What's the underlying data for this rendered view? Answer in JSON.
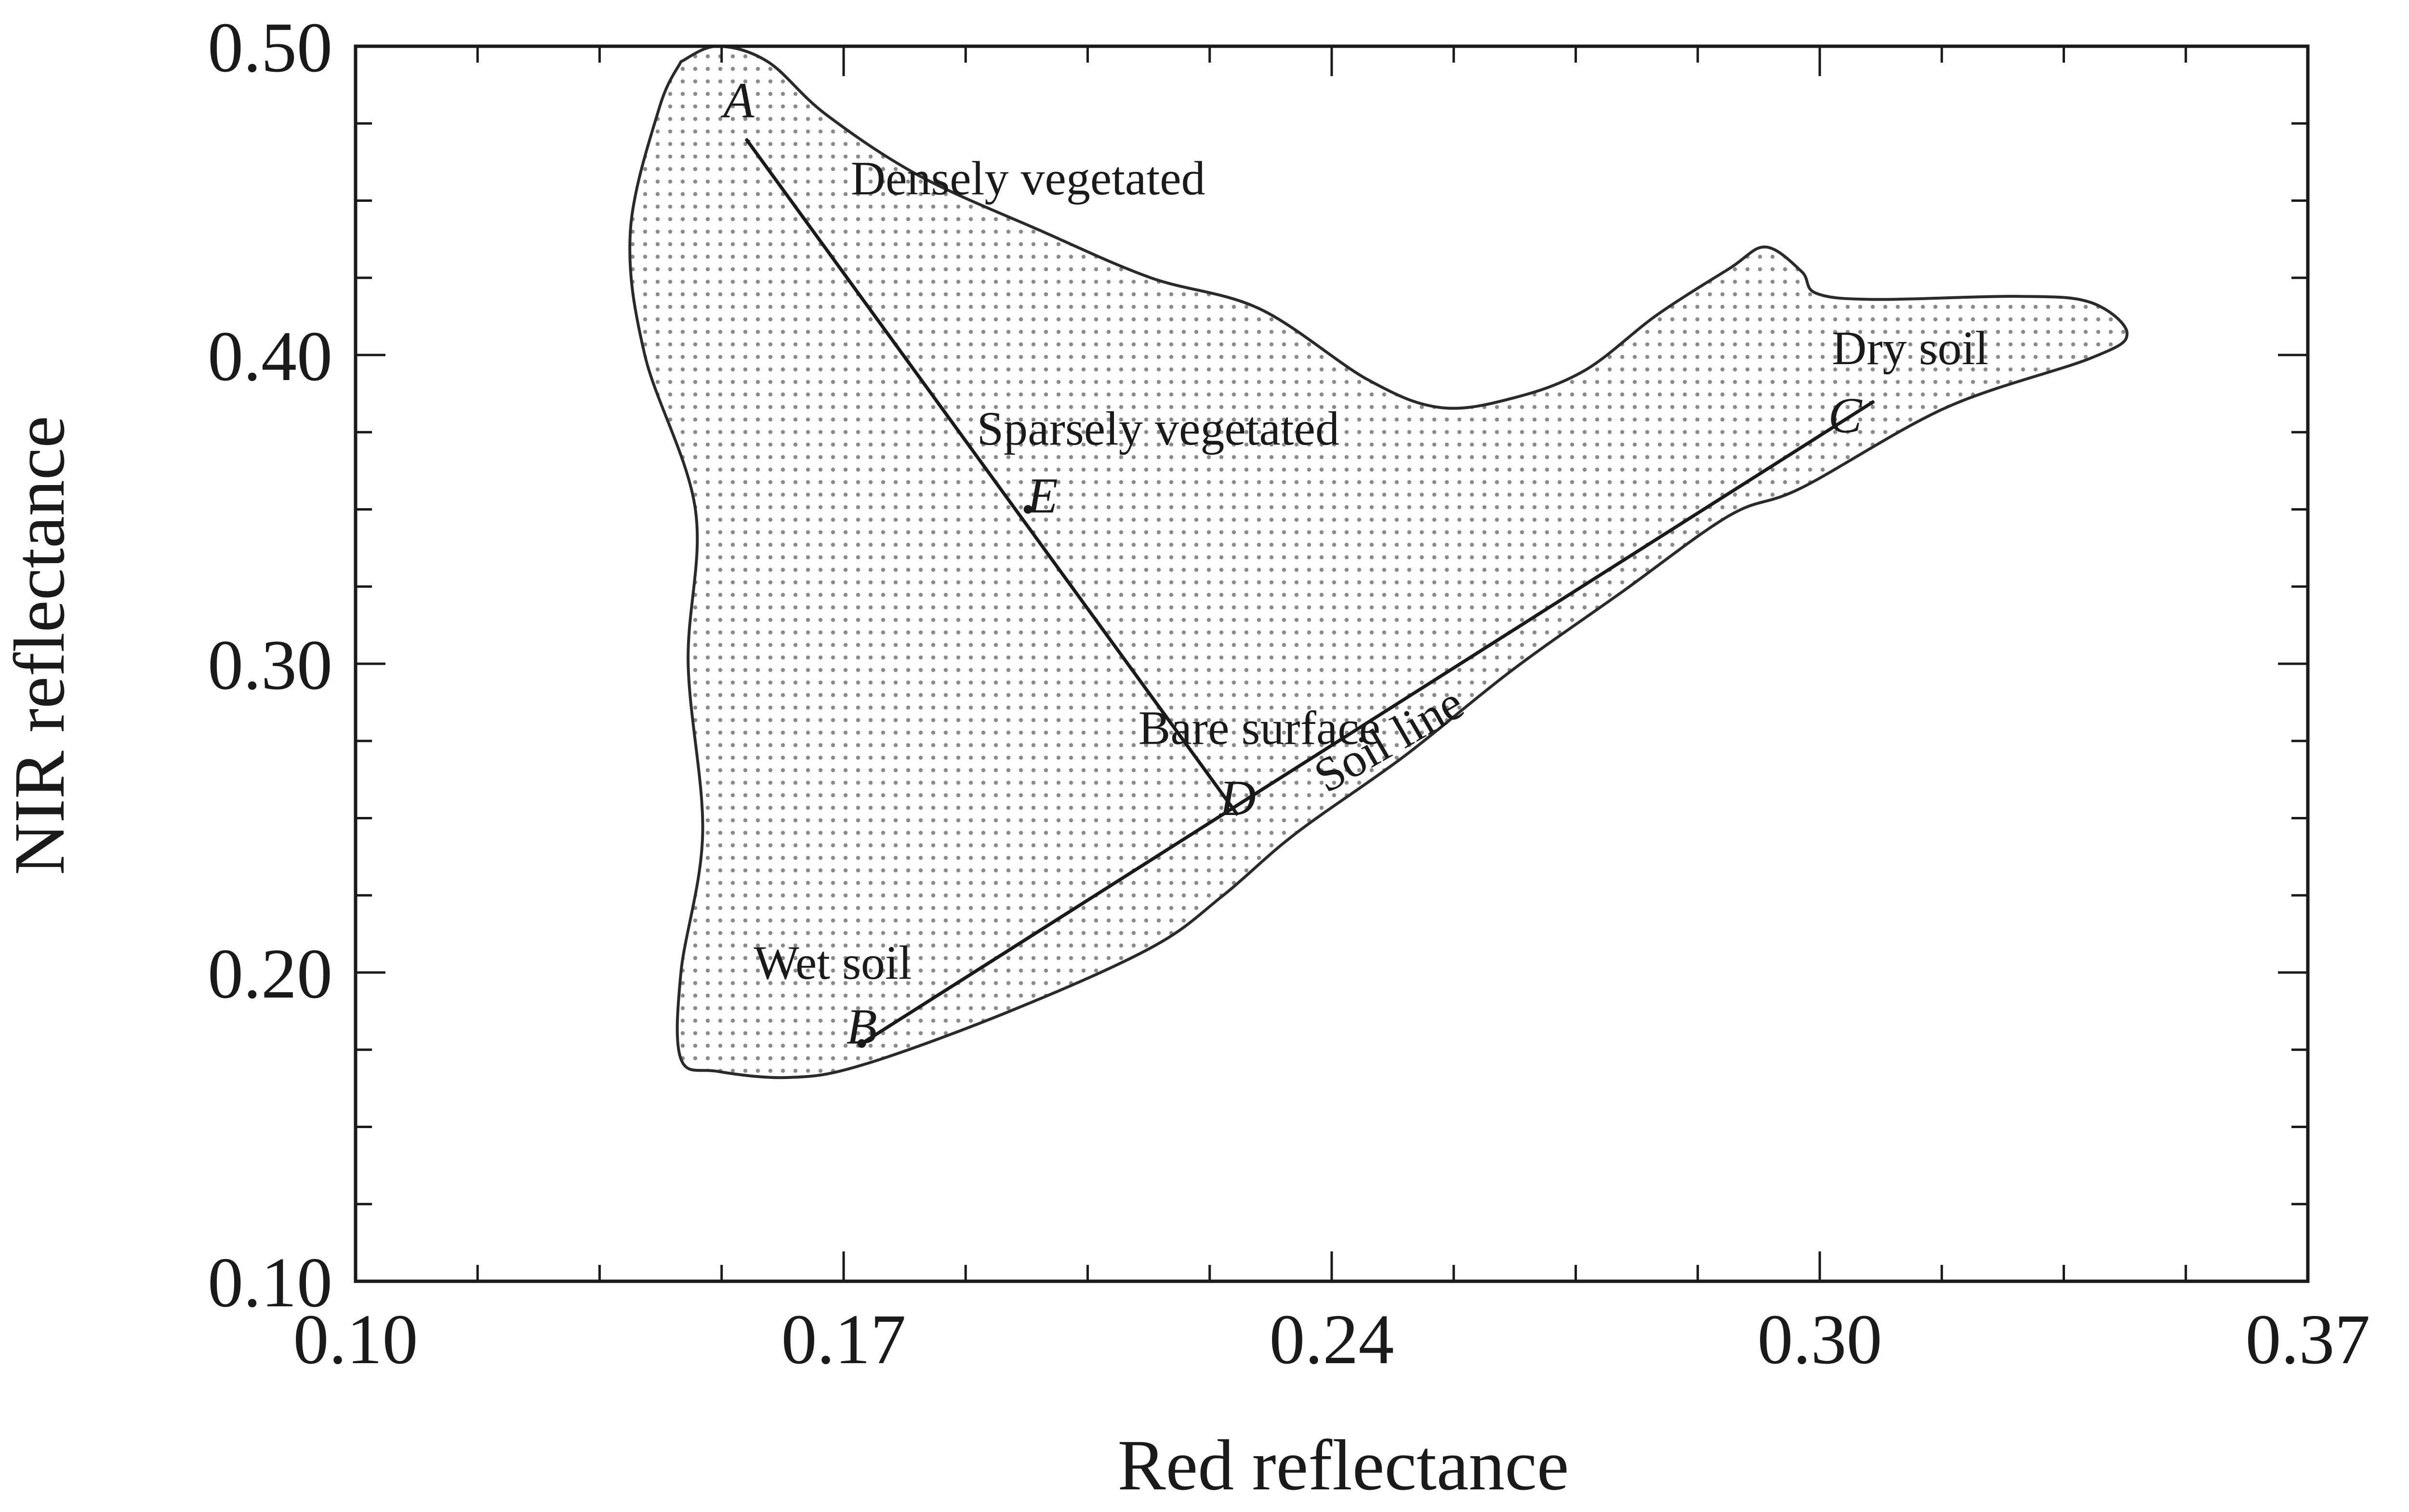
{
  "chart_data": {
    "type": "scatter",
    "title": "",
    "xlabel": "Red reflectance",
    "ylabel": "NIR reflectance",
    "xlim": [
      0.1,
      0.37
    ],
    "ylim": [
      0.1,
      0.5
    ],
    "xticks": [
      {
        "value": 0.1,
        "label": "0.10"
      },
      {
        "value": 0.17,
        "label": "0.17"
      },
      {
        "value": 0.24,
        "label": "0.24"
      },
      {
        "value": 0.3,
        "label": "0.30"
      },
      {
        "value": 0.37,
        "label": "0.37"
      }
    ],
    "yticks": [
      {
        "value": 0.1,
        "label": "0.10"
      },
      {
        "value": 0.2,
        "label": "0.20"
      },
      {
        "value": 0.3,
        "label": "0.30"
      },
      {
        "value": 0.4,
        "label": "0.40"
      },
      {
        "value": 0.5,
        "label": "0.50"
      }
    ],
    "grid": false,
    "scatter_region": {
      "fill": "dotted",
      "outline": [
        [
          0.145,
          0.495
        ],
        [
          0.15,
          0.5
        ],
        [
          0.157,
          0.495
        ],
        [
          0.165,
          0.478
        ],
        [
          0.178,
          0.458
        ],
        [
          0.195,
          0.44
        ],
        [
          0.21,
          0.425
        ],
        [
          0.225,
          0.415
        ],
        [
          0.24,
          0.392
        ],
        [
          0.25,
          0.383
        ],
        [
          0.26,
          0.386
        ],
        [
          0.27,
          0.395
        ],
        [
          0.28,
          0.413
        ],
        [
          0.29,
          0.428
        ],
        [
          0.295,
          0.435
        ],
        [
          0.3,
          0.427
        ],
        [
          0.302,
          0.42
        ],
        [
          0.31,
          0.418
        ],
        [
          0.33,
          0.419
        ],
        [
          0.34,
          0.417
        ],
        [
          0.345,
          0.407
        ],
        [
          0.34,
          0.399
        ],
        [
          0.32,
          0.383
        ],
        [
          0.3,
          0.357
        ],
        [
          0.29,
          0.348
        ],
        [
          0.275,
          0.323
        ],
        [
          0.26,
          0.298
        ],
        [
          0.245,
          0.27
        ],
        [
          0.23,
          0.245
        ],
        [
          0.22,
          0.225
        ],
        [
          0.21,
          0.208
        ],
        [
          0.19,
          0.187
        ],
        [
          0.17,
          0.17
        ],
        [
          0.16,
          0.166
        ],
        [
          0.15,
          0.168
        ],
        [
          0.145,
          0.172
        ],
        [
          0.145,
          0.2
        ],
        [
          0.148,
          0.245
        ],
        [
          0.146,
          0.3
        ],
        [
          0.147,
          0.35
        ],
        [
          0.14,
          0.4
        ],
        [
          0.138,
          0.44
        ],
        [
          0.142,
          0.48
        ],
        [
          0.145,
          0.495
        ]
      ]
    },
    "lines": [
      {
        "name": "Soil line",
        "from": [
          0.17,
          0.177
        ],
        "to": [
          0.31,
          0.385
        ],
        "arrow": "end"
      },
      {
        "from": [
          0.222,
          0.251
        ],
        "to": [
          0.154,
          0.47
        ],
        "arrow": "end"
      }
    ],
    "points": [
      {
        "label": "A",
        "x": 0.153,
        "y": 0.477
      },
      {
        "label": "B",
        "x": 0.17,
        "y": 0.177
      },
      {
        "label": "C",
        "x": 0.306,
        "y": 0.375
      },
      {
        "label": "D",
        "x": 0.222,
        "y": 0.251
      },
      {
        "label": "E",
        "x": 0.195,
        "y": 0.349
      }
    ],
    "annotations": [
      {
        "text": "Densely vegetated",
        "x": 0.193,
        "y": 0.452
      },
      {
        "text": "Sparsely vegetated",
        "x": 0.211,
        "y": 0.371
      },
      {
        "text": "Bare surface",
        "x": 0.225,
        "y": 0.274
      },
      {
        "text": "Wet soil",
        "x": 0.166,
        "y": 0.198
      },
      {
        "text": "Dry soil",
        "x": 0.315,
        "y": 0.397
      },
      {
        "text": "Soil line",
        "x": 0.244,
        "y": 0.271
      }
    ]
  }
}
